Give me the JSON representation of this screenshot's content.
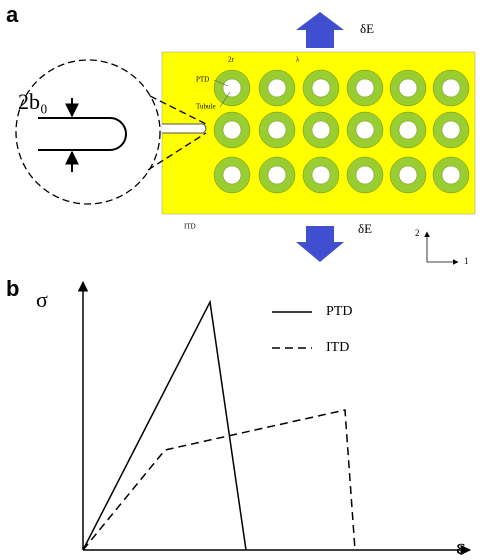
{
  "panel_a": {
    "label": "a",
    "load_top": "δE",
    "load_bottom": "δE",
    "crack_width": "2b₀",
    "ptd": "PTD",
    "tubule": "Tubule",
    "itd": "ITD",
    "diameter": "2r",
    "spacing": "λ",
    "axis_2": "2",
    "axis_1": "1"
  },
  "panel_b": {
    "label": "b",
    "y_axis": "σ",
    "x_axis": "ε",
    "legend": [
      "PTD",
      "ITD"
    ]
  }
}
